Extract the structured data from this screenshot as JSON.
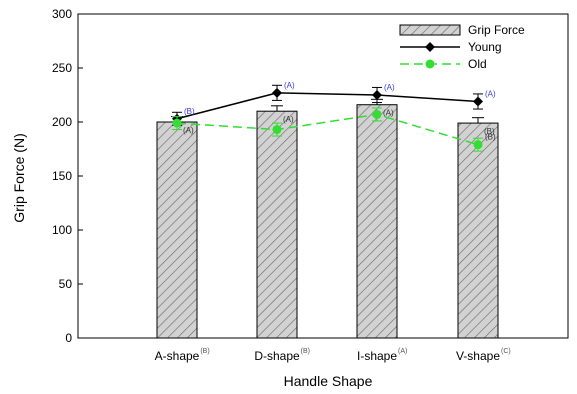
{
  "chart_data": {
    "type": "bar",
    "xlabel": "Handle Shape",
    "ylabel": "Grip Force (N)",
    "ylim": [
      0,
      300
    ],
    "yticks": [
      0,
      50,
      100,
      150,
      200,
      250,
      300
    ],
    "grid": false,
    "legend_position": "top-right",
    "categories": [
      "A-shape",
      "D-shape",
      "I-shape",
      "V-shape"
    ],
    "category_superscripts": [
      "(B)",
      "(B)",
      "(A)",
      "(C)"
    ],
    "bar_series": {
      "name": "Grip Force",
      "values": [
        200,
        210,
        216,
        199
      ],
      "errors": [
        5,
        5,
        5,
        5
      ],
      "color": "#c8c8c8",
      "annotations": [
        "(A)",
        "(A)",
        "(A)",
        "(B)"
      ]
    },
    "line_series": [
      {
        "name": "Young",
        "values": [
          203,
          227,
          225,
          219
        ],
        "errors": [
          6,
          7,
          7,
          7
        ],
        "color": "#000000",
        "annotations": [
          "(B)",
          "(A)",
          "(A)",
          "(A)"
        ],
        "annotation_color": "#3a3ad0"
      },
      {
        "name": "Old",
        "values": [
          199,
          193,
          207,
          179
        ],
        "errors": [
          6,
          6,
          6,
          6
        ],
        "color": "#33dd33",
        "annotations": [
          "",
          "",
          "",
          "(B)"
        ],
        "annotation_color": "#333333"
      }
    ]
  }
}
